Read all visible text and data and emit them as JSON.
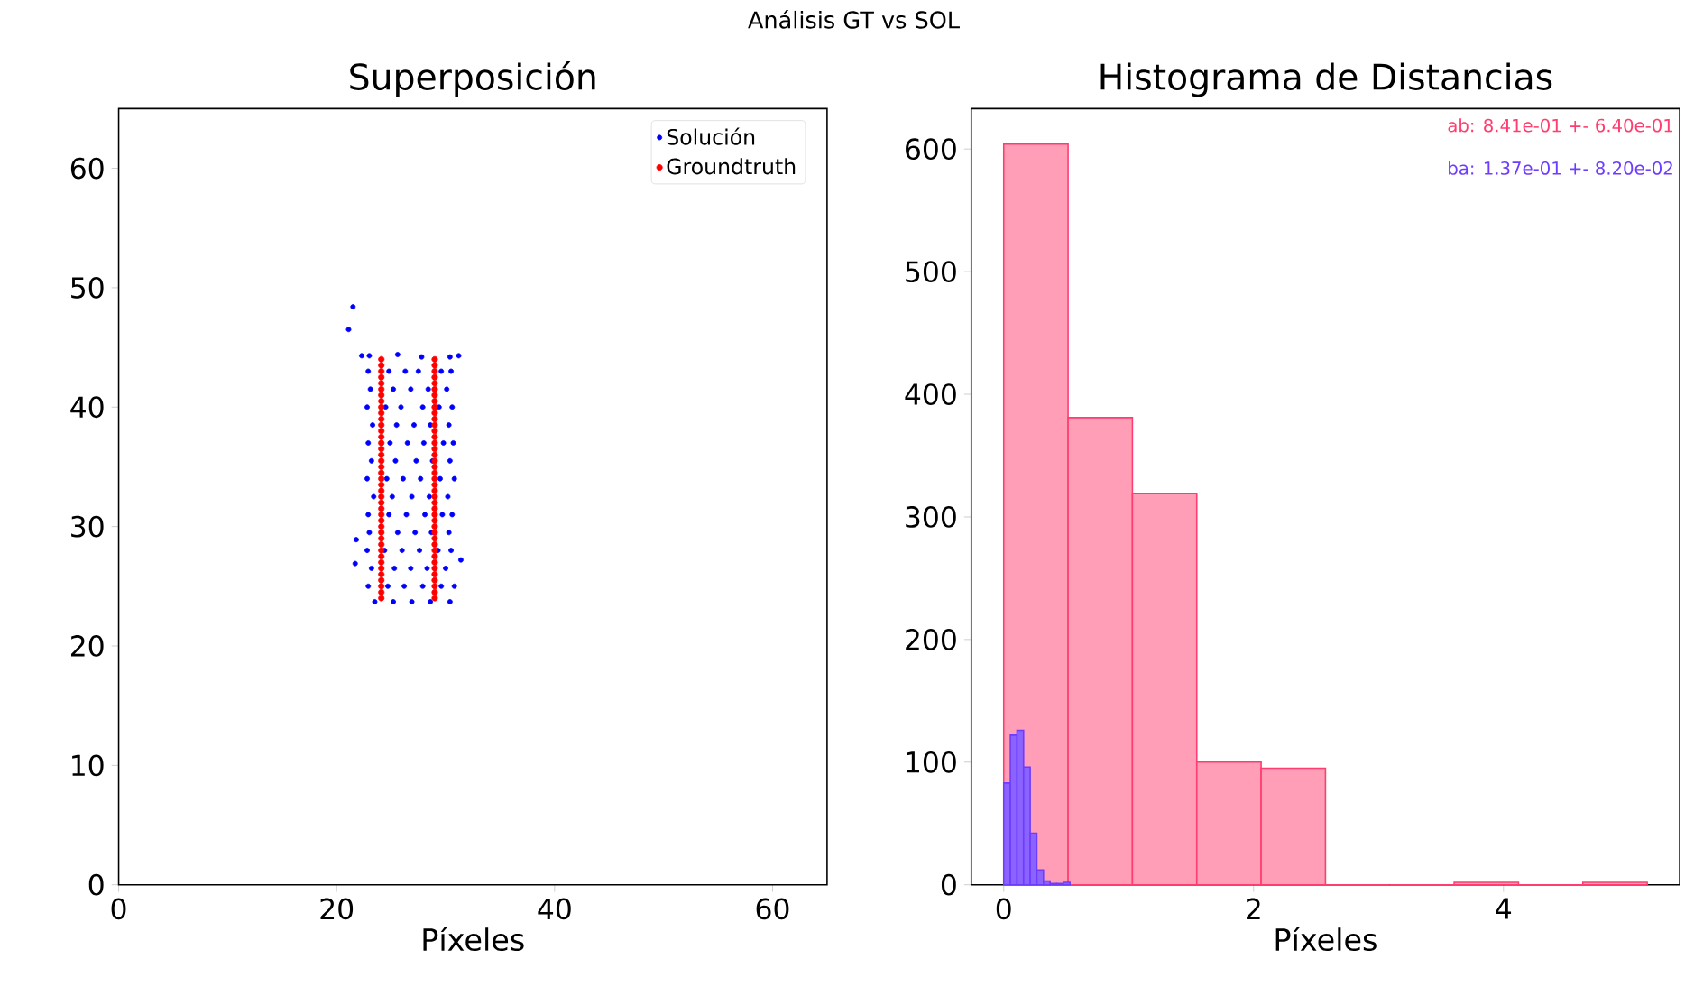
{
  "chart_data": [
    {
      "type": "other",
      "title": "Análisis GT vs SOL"
    },
    {
      "type": "scatter",
      "title": "Superposición",
      "xlabel": "Píxeles",
      "xlim": [
        0,
        65
      ],
      "ylim": [
        0,
        65
      ],
      "xticks": [
        0,
        20,
        40,
        60
      ],
      "yticks": [
        0,
        10,
        20,
        30,
        40,
        50,
        60
      ],
      "legend": "top right",
      "marker": "circle",
      "series": [
        {
          "name": "Solución",
          "color": "#0000ff",
          "x": [
            21.1,
            21.5,
            21.7,
            21.8,
            31.4,
            22.3,
            23.0,
            25.6,
            27.8,
            30.4,
            31.2,
            22.9,
            24.8,
            26.3,
            27.5,
            29.6,
            30.5,
            23.1,
            25.2,
            26.8,
            28.4,
            30.1,
            22.8,
            24.5,
            25.9,
            27.9,
            29.4,
            30.6,
            23.3,
            25.5,
            27.1,
            28.6,
            30.3,
            22.9,
            24.9,
            26.5,
            28.0,
            29.8,
            30.7,
            23.2,
            25.4,
            27.3,
            28.8,
            30.4,
            22.8,
            24.6,
            26.1,
            27.7,
            29.5,
            30.8,
            23.4,
            25.1,
            26.9,
            28.5,
            30.2,
            22.9,
            24.8,
            26.4,
            28.1,
            29.7,
            30.6,
            23.0,
            25.6,
            27.2,
            28.7,
            30.3,
            22.8,
            24.4,
            26.0,
            27.6,
            29.3,
            30.5,
            23.2,
            25.3,
            26.8,
            28.3,
            30.0,
            22.9,
            24.7,
            26.2,
            27.9,
            29.6,
            30.8,
            23.5,
            25.2,
            26.9,
            28.6,
            30.4
          ],
          "values": [
            46.5,
            48.4,
            26.9,
            28.9,
            27.2,
            44.3,
            44.3,
            44.4,
            44.2,
            44.2,
            44.3,
            43,
            43,
            43,
            43,
            43,
            43,
            41.5,
            41.5,
            41.5,
            41.5,
            41.5,
            40,
            40,
            40,
            40,
            40,
            40,
            38.5,
            38.5,
            38.5,
            38.5,
            38.5,
            37,
            37,
            37,
            37,
            37,
            37,
            35.5,
            35.5,
            35.5,
            35.5,
            35.5,
            34,
            34,
            34,
            34,
            34,
            34,
            32.5,
            32.5,
            32.5,
            32.5,
            32.5,
            31,
            31,
            31,
            31,
            31,
            31,
            29.5,
            29.5,
            29.5,
            29.5,
            29.5,
            28,
            28,
            28,
            28,
            28,
            28,
            26.5,
            26.5,
            26.5,
            26.5,
            26.5,
            25,
            25,
            25,
            25,
            25,
            25,
            23.7,
            23.7,
            23.7,
            23.7,
            23.7
          ]
        },
        {
          "name": "Groundtruth",
          "color": "#ff0000",
          "x": [
            24.1,
            24.1,
            24.1,
            24.1,
            24.1,
            24.1,
            24.1,
            24.1,
            24.1,
            24.1,
            24.1,
            24.1,
            24.1,
            24.1,
            24.1,
            24.1,
            24.1,
            24.1,
            24.1,
            24.1,
            24.1,
            24.1,
            24.1,
            24.1,
            24.1,
            24.1,
            24.1,
            24.1,
            24.1,
            24.1,
            24.1,
            24.1,
            24.1,
            24.1,
            24.1,
            24.1,
            24.1,
            24.1,
            24.1,
            24.1,
            24.1,
            29.0,
            29.0,
            29.0,
            29.0,
            29.0,
            29.0,
            29.0,
            29.0,
            29.0,
            29.0,
            29.0,
            29.0,
            29.0,
            29.0,
            29.0,
            29.0,
            29.0,
            29.0,
            29.0,
            29.0,
            29.0,
            29.0,
            29.0,
            29.0,
            29.0,
            29.0,
            29.0,
            29.0,
            29.0,
            29.0,
            29.0,
            29.0,
            29.0,
            29.0,
            29.0,
            29.0,
            29.0,
            29.0,
            29.0,
            29.0,
            29.0
          ],
          "values": [
            24,
            24.5,
            25,
            25.5,
            26,
            26.5,
            27,
            27.5,
            28,
            28.5,
            29,
            29.5,
            30,
            30.5,
            31,
            31.5,
            32,
            32.5,
            33,
            33.5,
            34,
            34.5,
            35,
            35.5,
            36,
            36.5,
            37,
            37.5,
            38,
            38.5,
            39,
            39.5,
            40,
            40.5,
            41,
            41.5,
            42,
            42.5,
            43,
            43.5,
            44,
            24,
            24.5,
            25,
            25.5,
            26,
            26.5,
            27,
            27.5,
            28,
            28.5,
            29,
            29.5,
            30,
            30.5,
            31,
            31.5,
            32,
            32.5,
            33,
            33.5,
            34,
            34.5,
            35,
            35.5,
            36,
            36.5,
            37,
            37.5,
            38,
            38.5,
            39,
            39.5,
            40,
            40.5,
            41,
            41.5,
            42,
            42.5,
            43,
            43.5,
            44
          ]
        }
      ]
    },
    {
      "type": "histogram",
      "title": "Histograma de Distancias",
      "xlabel": "Píxeles",
      "xlim": [
        -0.26,
        5.41
      ],
      "ylim": [
        0,
        633
      ],
      "xticks": [
        0,
        2,
        4
      ],
      "yticks": [
        0,
        100,
        200,
        300,
        400,
        500,
        600
      ],
      "annotations": [
        "ab: 8.41e-01 +- 6.40e-01",
        "ba: 1.37e-01 +- 8.20e-02"
      ],
      "color": "#ff3d6e",
      "bins": [
        0,
        0.515,
        1.03,
        1.545,
        2.06,
        2.575,
        3.09,
        3.605,
        4.12,
        4.635,
        5.15
      ],
      "values": [
        604,
        381,
        319,
        100,
        95,
        0,
        0,
        2,
        0,
        2
      ],
      "series": [
        {
          "type": "histogram",
          "color": "#6e3cff",
          "bins": [
            0,
            0.053,
            0.106,
            0.159,
            0.212,
            0.265,
            0.318,
            0.371,
            0.424,
            0.477,
            0.53
          ],
          "values": [
            83,
            122,
            126,
            96,
            42,
            12,
            3,
            1,
            1,
            2
          ]
        }
      ]
    }
  ]
}
